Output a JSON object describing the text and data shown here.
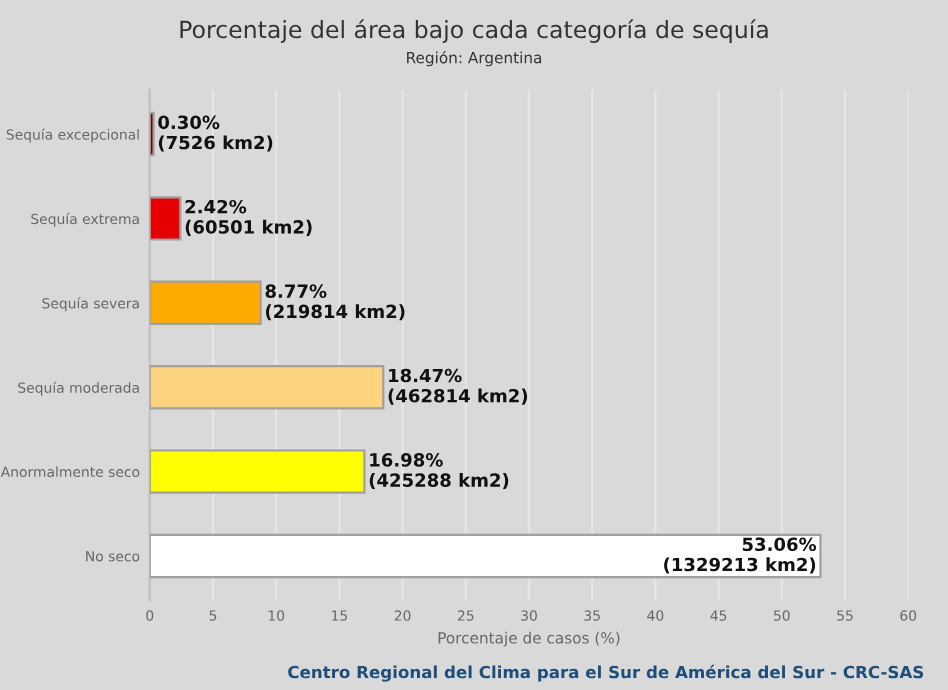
{
  "chart_data": {
    "type": "bar",
    "orientation": "horizontal",
    "title": "Porcentaje del área bajo cada categoría de sequía",
    "subtitle": "Región: Argentina",
    "xlabel": "Porcentaje de casos (%)",
    "categories": [
      "Sequía excepcional",
      "Sequía extrema",
      "Sequía severa",
      "Sequía moderada",
      "Anormalmente seco",
      "No seco"
    ],
    "values": [
      0.3,
      2.42,
      8.77,
      18.47,
      16.98,
      53.06
    ],
    "colors": [
      "#730000",
      "#e60000",
      "#ffaa00",
      "#fcd37f",
      "#ffff00",
      "#ffffff"
    ],
    "value_labels": [
      "0.30%\n(7526 km2)",
      "2.42%\n(60501 km2)",
      "8.77%\n(219814 km2)",
      "18.47%\n(462814 km2)",
      "16.98%\n(425288 km2)",
      "53.06%\n(1329213 km2)"
    ],
    "xlim": [
      0,
      60
    ],
    "xticks": [
      0,
      5,
      10,
      15,
      20,
      25,
      30,
      35,
      40,
      45,
      50,
      55,
      60
    ],
    "grid": "x",
    "annotations": [
      "Centro Regional del Clima para el Sur de América del Sur - CRC-SAS"
    ]
  }
}
